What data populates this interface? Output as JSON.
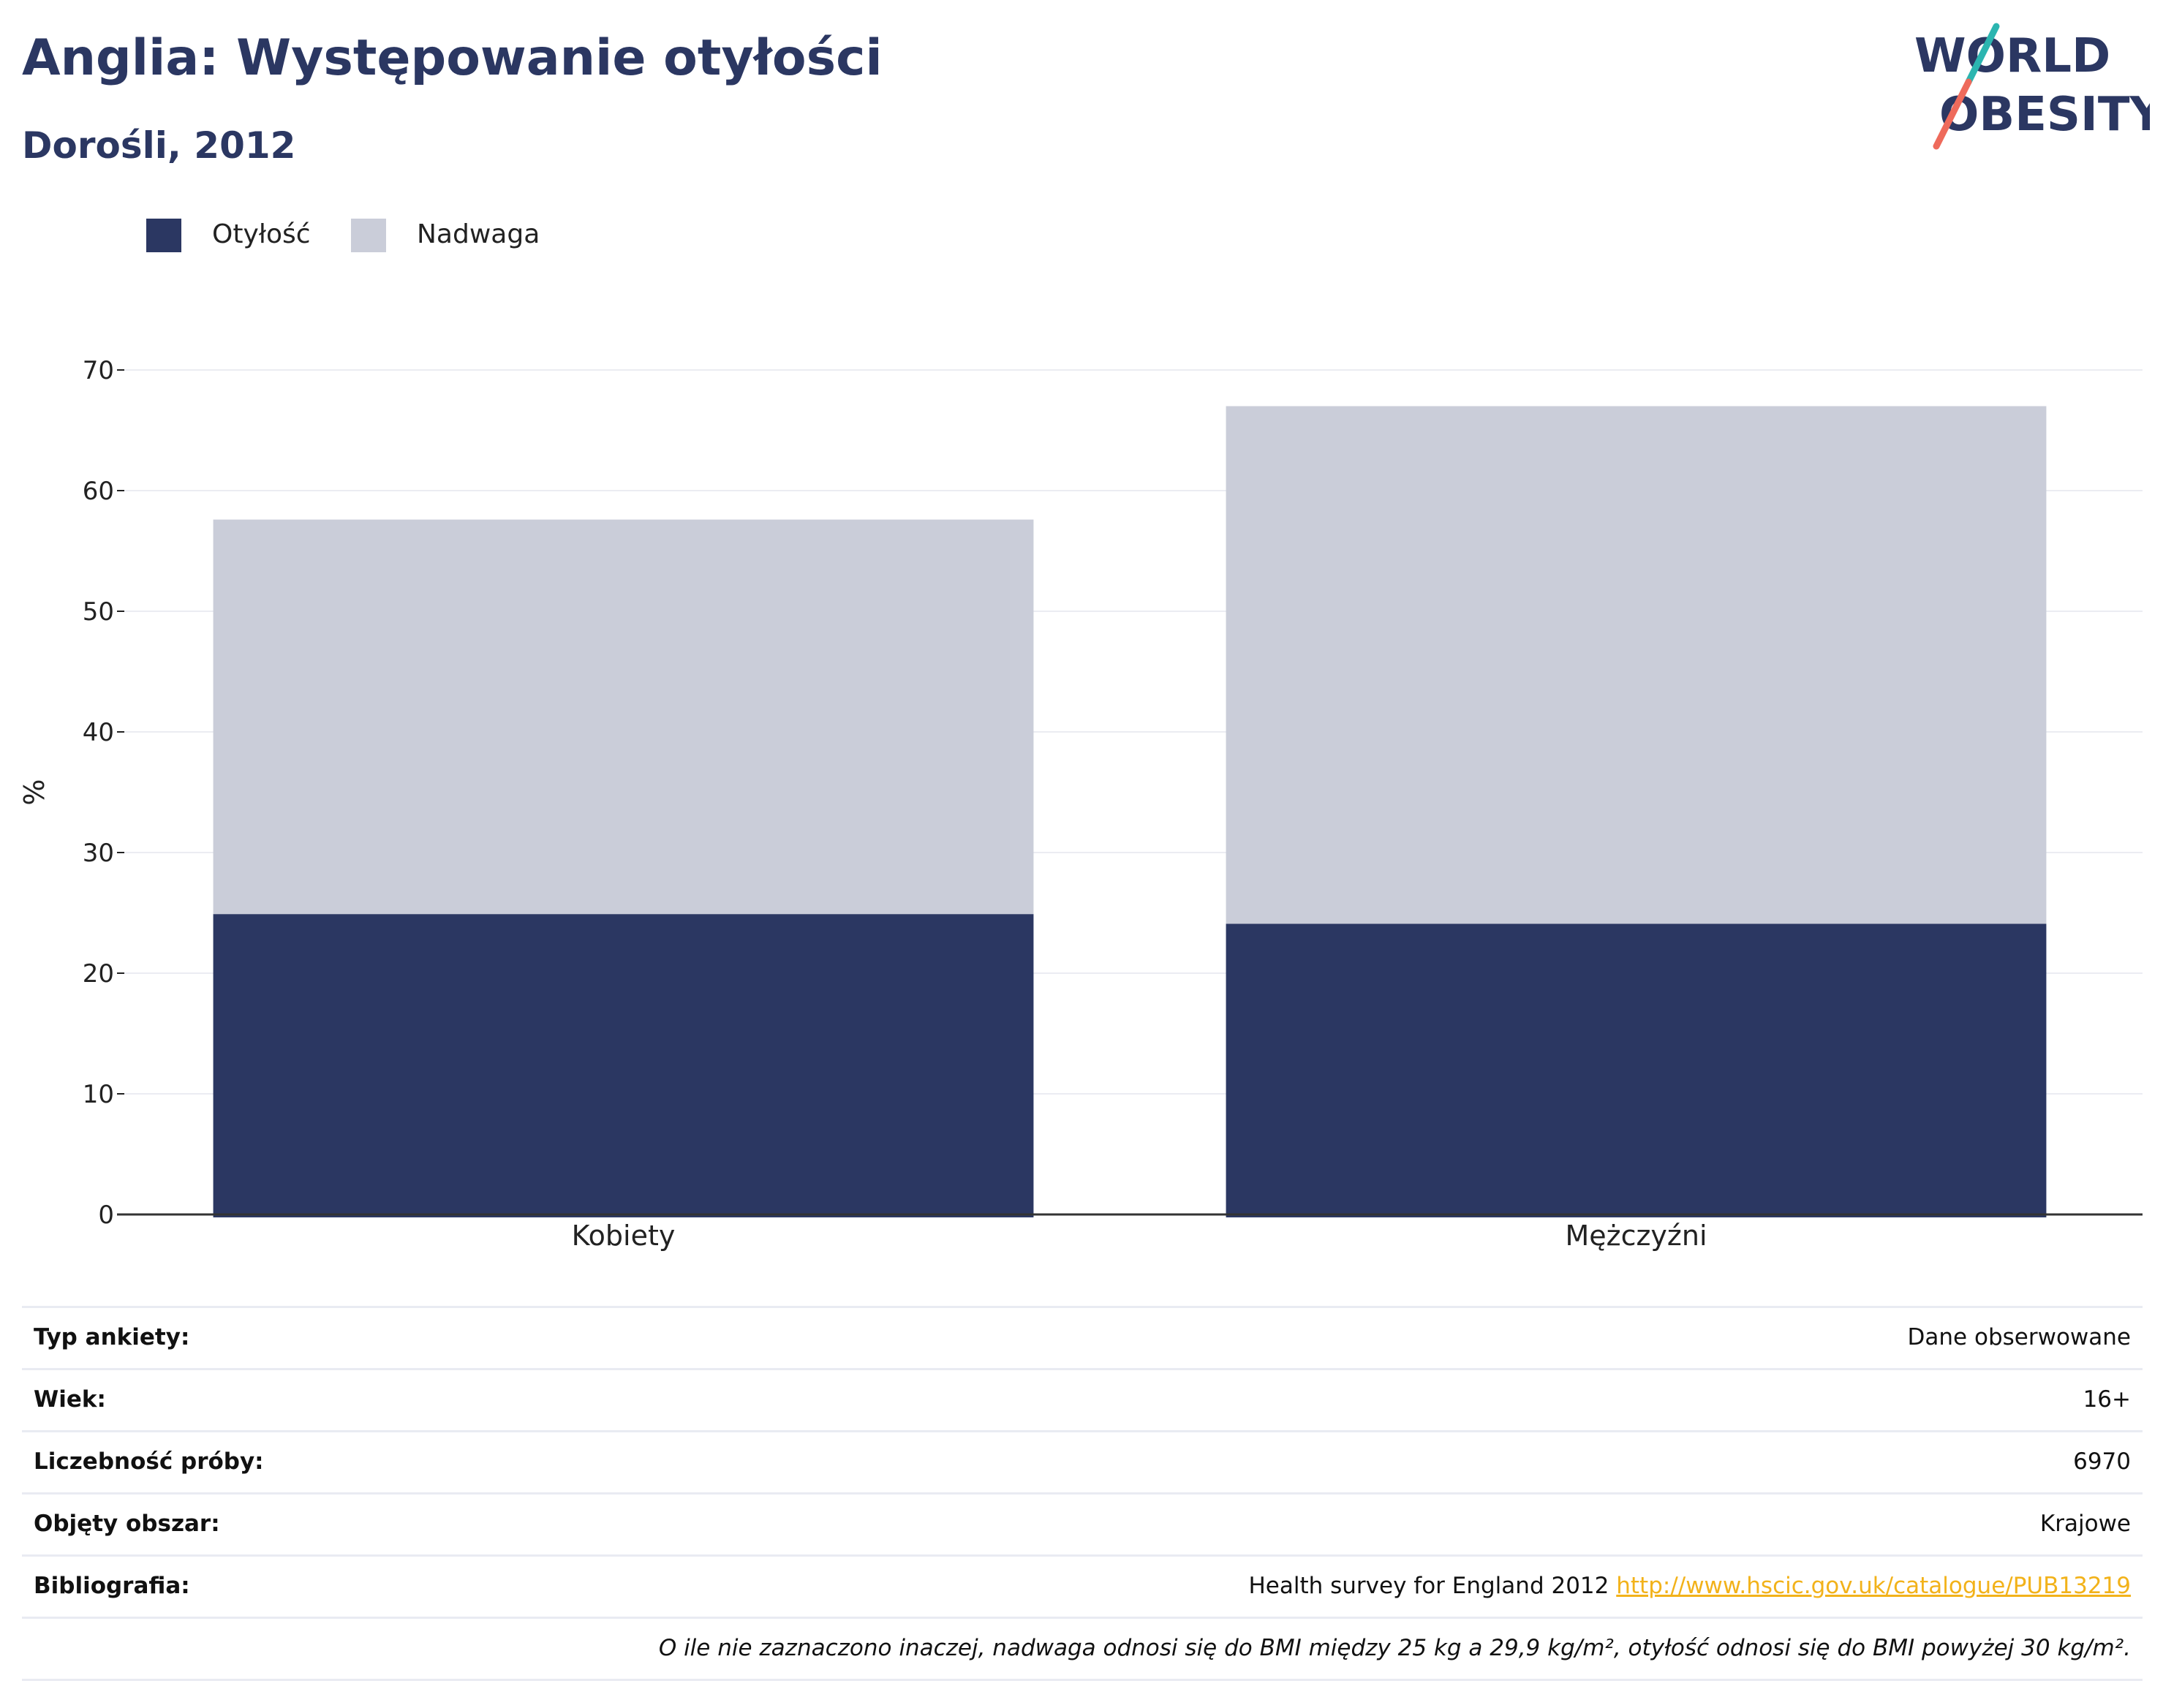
{
  "header": {
    "title": "Anglia: Występowanie otyłości",
    "subtitle": "Dorośli, 2012"
  },
  "logo": {
    "line1": "WORLD",
    "line2": "OBESITY",
    "text_color": "#2b3762",
    "slash_top_color": "#2bb5b0",
    "slash_bottom_color": "#ee6a5b"
  },
  "legend": [
    {
      "label": "Otyłość",
      "color": "#2b3762"
    },
    {
      "label": "Nadwaga",
      "color": "#cacdd9"
    }
  ],
  "chart_data": {
    "type": "bar",
    "stacked": true,
    "categories": [
      "Kobiety",
      "Mężczyźni"
    ],
    "series": [
      {
        "name": "Otyłość",
        "values": [
          24.9,
          24.1
        ],
        "color": "#2b3762"
      },
      {
        "name": "Nadwaga",
        "values": [
          32.7,
          42.9
        ],
        "color": "#cacdd9"
      }
    ],
    "ylabel": "%",
    "ylim": [
      0,
      70
    ],
    "yticks": [
      0,
      10,
      20,
      30,
      40,
      50,
      60,
      70
    ],
    "grid": true,
    "legend_position": "top-left"
  },
  "info": [
    {
      "key": "Typ ankiety:",
      "value": "Dane obserwowane"
    },
    {
      "key": "Wiek:",
      "value": "16+"
    },
    {
      "key": "Liczebność próby:",
      "value": "6970"
    },
    {
      "key": "Objęty obszar:",
      "value": "Krajowe"
    }
  ],
  "bibliography": {
    "key": "Bibliografia:",
    "text": "Health survey for England 2012",
    "link": "http://www.hscic.gov.uk/catalogue/PUB13219"
  },
  "note": "O ile nie zaznaczono inaczej, nadwaga odnosi się do BMI między 25 kg a 29,9 kg/m², otyłość odnosi się do BMI powyżej 30 kg/m²."
}
